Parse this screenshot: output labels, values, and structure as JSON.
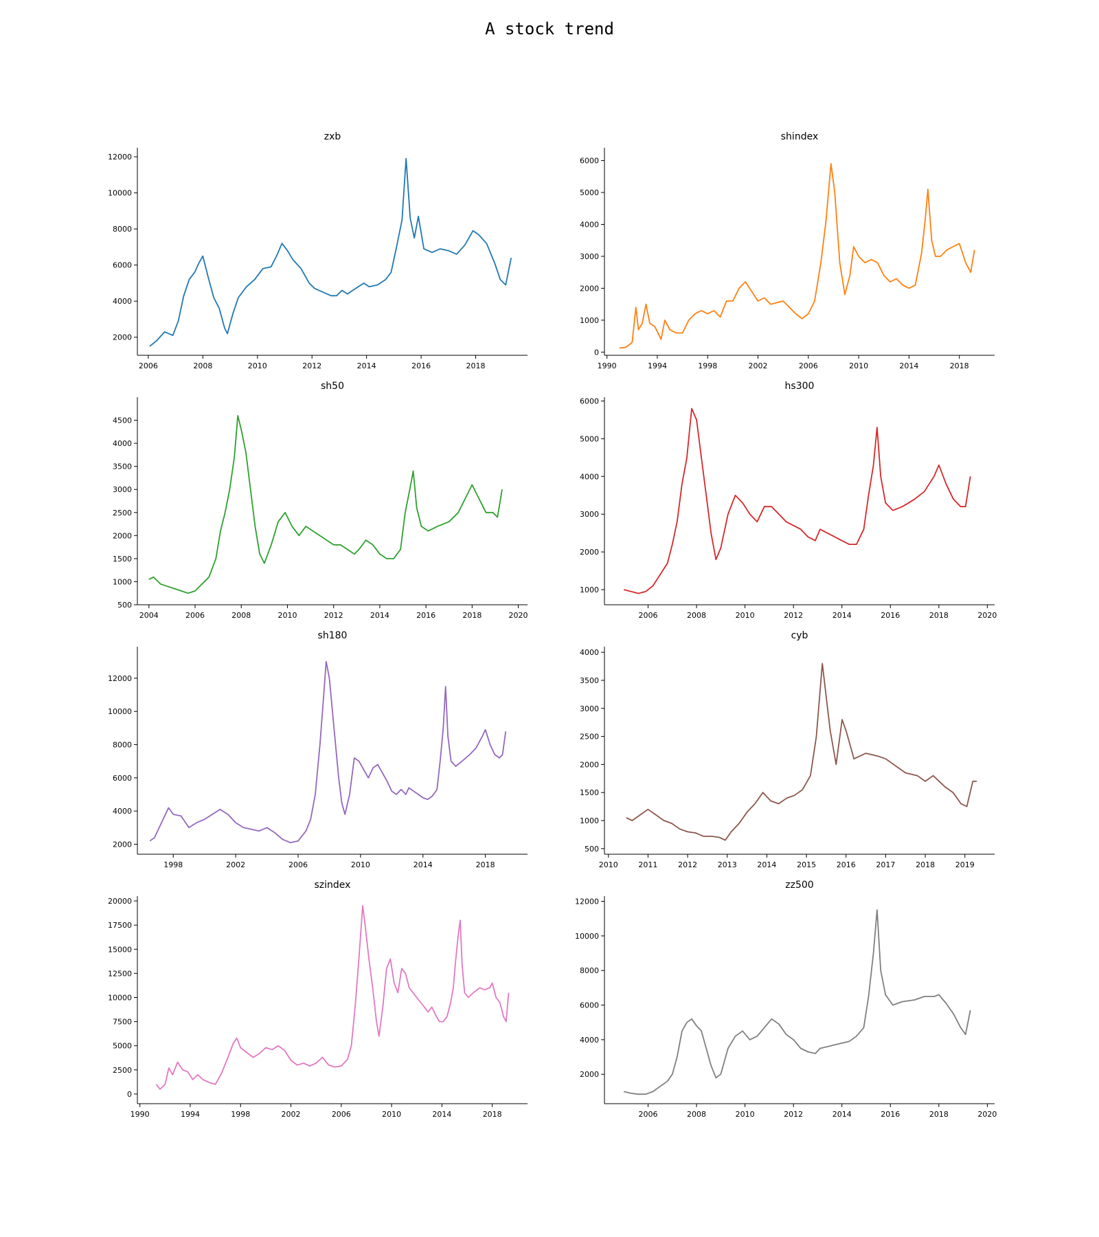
{
  "figure": {
    "title": "A stock trend"
  },
  "chart_data": [
    {
      "type": "line",
      "title": "zxb",
      "color": "#1f77b4",
      "xlim": [
        2005.6,
        2019.9
      ],
      "ylim": [
        1000,
        12500
      ],
      "xticks": [
        2006,
        2008,
        2010,
        2012,
        2014,
        2016,
        2018
      ],
      "yticks": [
        2000,
        4000,
        6000,
        8000,
        10000,
        12000
      ],
      "x": [
        2006.05,
        2006.3,
        2006.6,
        2006.9,
        2007.1,
        2007.3,
        2007.5,
        2007.7,
        2007.85,
        2008.0,
        2008.2,
        2008.4,
        2008.6,
        2008.8,
        2008.9,
        2009.1,
        2009.3,
        2009.6,
        2009.9,
        2010.2,
        2010.5,
        2010.7,
        2010.9,
        2011.1,
        2011.3,
        2011.6,
        2011.9,
        2012.1,
        2012.4,
        2012.7,
        2012.9,
        2013.1,
        2013.3,
        2013.6,
        2013.9,
        2014.1,
        2014.4,
        2014.7,
        2014.9,
        2015.1,
        2015.3,
        2015.45,
        2015.6,
        2015.75,
        2015.9,
        2016.1,
        2016.4,
        2016.7,
        2017.0,
        2017.3,
        2017.6,
        2017.9,
        2018.1,
        2018.4,
        2018.7,
        2018.9,
        2019.1,
        2019.3
      ],
      "y": [
        1500,
        1800,
        2300,
        2100,
        2900,
        4300,
        5200,
        5600,
        6100,
        6500,
        5300,
        4200,
        3600,
        2500,
        2200,
        3300,
        4200,
        4800,
        5200,
        5800,
        5900,
        6500,
        7200,
        6800,
        6300,
        5800,
        5000,
        4700,
        4500,
        4300,
        4300,
        4600,
        4400,
        4700,
        5000,
        4800,
        4900,
        5200,
        5600,
        7000,
        8500,
        11900,
        8600,
        7500,
        8700,
        6900,
        6700,
        6900,
        6800,
        6600,
        7100,
        7900,
        7700,
        7200,
        6100,
        5200,
        4900,
        6400
      ]
    },
    {
      "type": "line",
      "title": "shindex",
      "color": "#ff7f0e",
      "xlim": [
        1989.8,
        2020.8
      ],
      "ylim": [
        -100,
        6400
      ],
      "xticks": [
        1990,
        1994,
        1998,
        2002,
        2006,
        2010,
        2014,
        2018
      ],
      "yticks": [
        0,
        1000,
        2000,
        3000,
        4000,
        5000,
        6000
      ],
      "x": [
        1991.0,
        1991.5,
        1992.0,
        1992.3,
        1992.5,
        1992.8,
        1993.1,
        1993.4,
        1993.8,
        1994.3,
        1994.6,
        1995.0,
        1995.5,
        1996.0,
        1996.5,
        1997.0,
        1997.5,
        1998.0,
        1998.5,
        1999.0,
        1999.5,
        2000.0,
        2000.5,
        2001.0,
        2001.5,
        2002.0,
        2002.5,
        2003.0,
        2004.0,
        2004.5,
        2005.0,
        2005.5,
        2006.0,
        2006.5,
        2007.0,
        2007.4,
        2007.8,
        2008.1,
        2008.5,
        2008.9,
        2009.3,
        2009.6,
        2010.0,
        2010.5,
        2011.0,
        2011.5,
        2012.0,
        2012.5,
        2013.0,
        2013.5,
        2014.0,
        2014.5,
        2015.0,
        2015.3,
        2015.5,
        2015.8,
        2016.1,
        2016.5,
        2017.0,
        2017.5,
        2018.0,
        2018.5,
        2018.9,
        2019.2
      ],
      "y": [
        130,
        150,
        300,
        1400,
        700,
        900,
        1500,
        900,
        800,
        400,
        1000,
        700,
        600,
        600,
        1000,
        1200,
        1300,
        1200,
        1300,
        1100,
        1600,
        1600,
        2000,
        2200,
        1900,
        1600,
        1700,
        1500,
        1600,
        1400,
        1200,
        1050,
        1200,
        1600,
        2800,
        4100,
        5900,
        5000,
        2800,
        1800,
        2400,
        3300,
        3000,
        2800,
        2900,
        2800,
        2400,
        2200,
        2300,
        2100,
        2000,
        2100,
        3100,
        4200,
        5100,
        3500,
        3000,
        3000,
        3200,
        3300,
        3400,
        2800,
        2500,
        3200
      ]
    },
    {
      "type": "line",
      "title": "sh50",
      "color": "#2ca02c",
      "xlim": [
        2003.5,
        2020.4
      ],
      "ylim": [
        500,
        5000
      ],
      "xticks": [
        2004,
        2006,
        2008,
        2010,
        2012,
        2014,
        2016,
        2018,
        2020
      ],
      "yticks": [
        500,
        1000,
        1500,
        2000,
        2500,
        3000,
        3500,
        4000,
        4500
      ],
      "x": [
        2004.0,
        2004.2,
        2004.5,
        2004.8,
        2005.1,
        2005.4,
        2005.7,
        2006.0,
        2006.3,
        2006.6,
        2006.9,
        2007.1,
        2007.3,
        2007.5,
        2007.7,
        2007.85,
        2008.0,
        2008.2,
        2008.4,
        2008.6,
        2008.8,
        2009.0,
        2009.3,
        2009.6,
        2009.9,
        2010.2,
        2010.5,
        2010.8,
        2011.1,
        2011.4,
        2011.7,
        2012.0,
        2012.3,
        2012.6,
        2012.9,
        2013.1,
        2013.4,
        2013.7,
        2014.0,
        2014.3,
        2014.6,
        2014.9,
        2015.1,
        2015.3,
        2015.45,
        2015.6,
        2015.8,
        2016.1,
        2016.5,
        2017.0,
        2017.4,
        2017.8,
        2018.0,
        2018.3,
        2018.6,
        2018.9,
        2019.1,
        2019.3
      ],
      "y": [
        1050,
        1100,
        950,
        900,
        850,
        800,
        750,
        800,
        950,
        1100,
        1500,
        2100,
        2500,
        3000,
        3700,
        4600,
        4300,
        3800,
        3000,
        2200,
        1600,
        1400,
        1800,
        2300,
        2500,
        2200,
        2000,
        2200,
        2100,
        2000,
        1900,
        1800,
        1800,
        1700,
        1600,
        1700,
        1900,
        1800,
        1600,
        1500,
        1500,
        1700,
        2500,
        3000,
        3400,
        2600,
        2200,
        2100,
        2200,
        2300,
        2500,
        2900,
        3100,
        2800,
        2500,
        2500,
        2400,
        3000
      ]
    },
    {
      "type": "line",
      "title": "hs300",
      "color": "#d62728",
      "xlim": [
        2004.2,
        2020.3
      ],
      "ylim": [
        600,
        6100
      ],
      "xticks": [
        2006,
        2008,
        2010,
        2012,
        2014,
        2016,
        2018,
        2020
      ],
      "yticks": [
        1000,
        2000,
        3000,
        4000,
        5000,
        6000
      ],
      "x": [
        2005.0,
        2005.3,
        2005.6,
        2005.9,
        2006.2,
        2006.5,
        2006.8,
        2007.0,
        2007.2,
        2007.4,
        2007.6,
        2007.8,
        2008.0,
        2008.2,
        2008.4,
        2008.6,
        2008.8,
        2009.0,
        2009.3,
        2009.6,
        2009.9,
        2010.2,
        2010.5,
        2010.8,
        2011.1,
        2011.4,
        2011.7,
        2012.0,
        2012.3,
        2012.6,
        2012.9,
        2013.1,
        2013.4,
        2013.7,
        2014.0,
        2014.3,
        2014.6,
        2014.9,
        2015.1,
        2015.3,
        2015.45,
        2015.6,
        2015.8,
        2016.1,
        2016.5,
        2017.0,
        2017.4,
        2017.8,
        2018.0,
        2018.3,
        2018.6,
        2018.9,
        2019.1,
        2019.3
      ],
      "y": [
        1000,
        950,
        900,
        950,
        1100,
        1400,
        1700,
        2200,
        2800,
        3800,
        4500,
        5800,
        5500,
        4500,
        3500,
        2500,
        1800,
        2100,
        3000,
        3500,
        3300,
        3000,
        2800,
        3200,
        3200,
        3000,
        2800,
        2700,
        2600,
        2400,
        2300,
        2600,
        2500,
        2400,
        2300,
        2200,
        2200,
        2600,
        3500,
        4300,
        5300,
        4000,
        3300,
        3100,
        3200,
        3400,
        3600,
        4000,
        4300,
        3800,
        3400,
        3200,
        3200,
        4000
      ]
    },
    {
      "type": "line",
      "title": "sh180",
      "color": "#9467bd",
      "xlim": [
        1995.7,
        2020.7
      ],
      "ylim": [
        1400,
        13900
      ],
      "xticks": [
        1998,
        2002,
        2006,
        2010,
        2014,
        2018
      ],
      "yticks": [
        2000,
        4000,
        6000,
        8000,
        10000,
        12000
      ],
      "x": [
        1996.5,
        1996.8,
        1997.1,
        1997.4,
        1997.7,
        1998.0,
        1998.5,
        1999.0,
        1999.5,
        2000.0,
        2000.5,
        2001.0,
        2001.5,
        2002.0,
        2002.5,
        2003.0,
        2003.5,
        2004.0,
        2004.5,
        2005.0,
        2005.5,
        2006.0,
        2006.5,
        2006.8,
        2007.1,
        2007.4,
        2007.6,
        2007.8,
        2008.0,
        2008.2,
        2008.4,
        2008.6,
        2008.8,
        2009.0,
        2009.3,
        2009.6,
        2009.9,
        2010.2,
        2010.5,
        2010.8,
        2011.1,
        2011.4,
        2011.7,
        2012.0,
        2012.3,
        2012.6,
        2012.9,
        2013.1,
        2013.4,
        2013.7,
        2014.0,
        2014.3,
        2014.6,
        2014.9,
        2015.1,
        2015.3,
        2015.45,
        2015.6,
        2015.8,
        2016.1,
        2016.5,
        2017.0,
        2017.4,
        2017.8,
        2018.0,
        2018.3,
        2018.6,
        2018.9,
        2019.1,
        2019.3
      ],
      "y": [
        2200,
        2400,
        3000,
        3600,
        4200,
        3800,
        3700,
        3000,
        3300,
        3500,
        3800,
        4100,
        3800,
        3300,
        3000,
        2900,
        2800,
        3000,
        2700,
        2300,
        2100,
        2200,
        2800,
        3500,
        5000,
        8000,
        10500,
        13000,
        12000,
        10000,
        8000,
        6000,
        4500,
        3800,
        5000,
        7200,
        7000,
        6500,
        6000,
        6600,
        6800,
        6300,
        5800,
        5200,
        5000,
        5300,
        5000,
        5400,
        5200,
        5000,
        4800,
        4700,
        4900,
        5300,
        7000,
        9000,
        11500,
        8500,
        7000,
        6700,
        7000,
        7400,
        7800,
        8500,
        8900,
        8000,
        7400,
        7200,
        7400,
        8800
      ]
    },
    {
      "type": "line",
      "title": "cyb",
      "color": "#8c564b",
      "xlim": [
        2009.9,
        2019.75
      ],
      "ylim": [
        400,
        4100
      ],
      "xticks": [
        2010,
        2011,
        2012,
        2013,
        2014,
        2015,
        2016,
        2017,
        2018,
        2019
      ],
      "yticks": [
        500,
        1000,
        1500,
        2000,
        2500,
        3000,
        3500,
        4000
      ],
      "x": [
        2010.45,
        2010.6,
        2010.8,
        2011.0,
        2011.2,
        2011.4,
        2011.6,
        2011.8,
        2012.0,
        2012.2,
        2012.4,
        2012.6,
        2012.8,
        2012.95,
        2013.1,
        2013.3,
        2013.5,
        2013.7,
        2013.9,
        2014.1,
        2014.3,
        2014.5,
        2014.7,
        2014.9,
        2015.1,
        2015.25,
        2015.4,
        2015.5,
        2015.6,
        2015.75,
        2015.9,
        2016.0,
        2016.2,
        2016.5,
        2016.8,
        2017.0,
        2017.2,
        2017.5,
        2017.8,
        2018.0,
        2018.2,
        2018.5,
        2018.7,
        2018.9,
        2019.05,
        2019.2,
        2019.3
      ],
      "y": [
        1050,
        1000,
        1100,
        1200,
        1100,
        1000,
        950,
        850,
        800,
        780,
        720,
        720,
        700,
        650,
        800,
        950,
        1150,
        1300,
        1500,
        1350,
        1300,
        1400,
        1450,
        1550,
        1800,
        2500,
        3800,
        3200,
        2600,
        2000,
        2800,
        2600,
        2100,
        2200,
        2150,
        2100,
        2000,
        1850,
        1800,
        1700,
        1800,
        1600,
        1500,
        1300,
        1250,
        1700,
        1700
      ]
    },
    {
      "type": "line",
      "title": "szindex",
      "color": "#e377c2",
      "xlim": [
        1989.8,
        2020.8
      ],
      "ylim": [
        -1000,
        20500
      ],
      "xticks": [
        1990,
        1994,
        1998,
        2002,
        2006,
        2010,
        2014,
        2018
      ],
      "yticks": [
        0,
        2500,
        5000,
        7500,
        10000,
        12500,
        15000,
        17500,
        20000
      ],
      "x": [
        1991.3,
        1991.6,
        1992.0,
        1992.3,
        1992.6,
        1993.0,
        1993.4,
        1993.8,
        1994.2,
        1994.6,
        1995.0,
        1995.5,
        1996.0,
        1996.5,
        1997.0,
        1997.4,
        1997.7,
        1998.0,
        1998.5,
        1999.0,
        1999.5,
        2000.0,
        2000.5,
        2001.0,
        2001.5,
        2002.0,
        2002.5,
        2003.0,
        2003.5,
        2004.0,
        2004.5,
        2005.0,
        2005.5,
        2006.0,
        2006.5,
        2006.8,
        2007.1,
        2007.4,
        2007.7,
        2007.9,
        2008.2,
        2008.5,
        2008.8,
        2009.0,
        2009.3,
        2009.6,
        2009.9,
        2010.2,
        2010.5,
        2010.8,
        2011.1,
        2011.4,
        2011.7,
        2012.0,
        2012.3,
        2012.6,
        2012.9,
        2013.2,
        2013.5,
        2013.8,
        2014.1,
        2014.4,
        2014.7,
        2014.9,
        2015.1,
        2015.3,
        2015.45,
        2015.6,
        2015.8,
        2016.1,
        2016.5,
        2017.0,
        2017.4,
        2017.8,
        2018.0,
        2018.3,
        2018.6,
        2018.9,
        2019.1,
        2019.3
      ],
      "y": [
        1000,
        500,
        1000,
        2700,
        2000,
        3300,
        2500,
        2300,
        1500,
        2000,
        1500,
        1200,
        1000,
        2200,
        3800,
        5200,
        5800,
        4800,
        4300,
        3800,
        4200,
        4800,
        4600,
        5000,
        4500,
        3500,
        3000,
        3200,
        2900,
        3200,
        3800,
        3000,
        2800,
        2900,
        3600,
        5000,
        9000,
        14000,
        19500,
        17500,
        14000,
        11000,
        7500,
        6000,
        9000,
        13000,
        14000,
        11500,
        10500,
        13000,
        12500,
        11000,
        10500,
        10000,
        9500,
        9000,
        8500,
        9000,
        8200,
        7500,
        7500,
        8000,
        9500,
        11000,
        14000,
        16500,
        18000,
        13500,
        10500,
        10000,
        10500,
        11000,
        10800,
        11000,
        11500,
        10000,
        9500,
        8000,
        7500,
        10500
      ]
    },
    {
      "type": "line",
      "title": "zz500",
      "color": "#7f7f7f",
      "xlim": [
        2004.2,
        2020.3
      ],
      "ylim": [
        300,
        12300
      ],
      "xticks": [
        2006,
        2008,
        2010,
        2012,
        2014,
        2016,
        2018,
        2020
      ],
      "yticks": [
        2000,
        4000,
        6000,
        8000,
        10000,
        12000
      ],
      "x": [
        2005.0,
        2005.3,
        2005.6,
        2005.9,
        2006.2,
        2006.5,
        2006.8,
        2007.0,
        2007.2,
        2007.4,
        2007.6,
        2007.8,
        2008.0,
        2008.2,
        2008.4,
        2008.6,
        2008.8,
        2009.0,
        2009.3,
        2009.6,
        2009.9,
        2010.2,
        2010.5,
        2010.8,
        2011.1,
        2011.4,
        2011.7,
        2012.0,
        2012.3,
        2012.6,
        2012.9,
        2013.1,
        2013.4,
        2013.7,
        2014.0,
        2014.3,
        2014.6,
        2014.9,
        2015.1,
        2015.3,
        2015.45,
        2015.6,
        2015.8,
        2016.1,
        2016.5,
        2017.0,
        2017.4,
        2017.8,
        2018.0,
        2018.3,
        2018.6,
        2018.9,
        2019.1,
        2019.3
      ],
      "y": [
        1000,
        900,
        850,
        850,
        1000,
        1300,
        1600,
        2000,
        3000,
        4500,
        5000,
        5200,
        4800,
        4500,
        3500,
        2500,
        1800,
        2000,
        3500,
        4200,
        4500,
        4000,
        4200,
        4700,
        5200,
        4900,
        4300,
        4000,
        3500,
        3300,
        3200,
        3500,
        3600,
        3700,
        3800,
        3900,
        4200,
        4700,
        6500,
        9000,
        11500,
        8000,
        6600,
        6000,
        6200,
        6300,
        6500,
        6500,
        6600,
        6100,
        5500,
        4700,
        4300,
        5700
      ]
    }
  ]
}
